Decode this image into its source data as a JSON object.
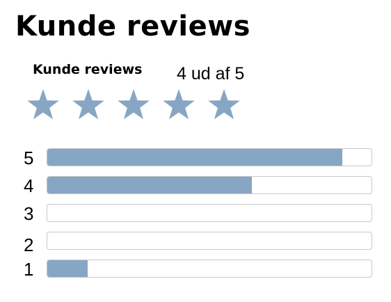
{
  "header": {
    "title": "Kunde reviews"
  },
  "rating": {
    "label": "Kunde reviews",
    "summary": "4 ud af 5",
    "value": 4,
    "max": 5,
    "star_color": "#87a6c3"
  },
  "distribution": [
    {
      "label": "5",
      "fraction": 0.91
    },
    {
      "label": "4",
      "fraction": 0.63
    },
    {
      "label": "3",
      "fraction": 0.0
    },
    {
      "label": "2",
      "fraction": 0.0
    },
    {
      "label": "1",
      "fraction": 0.125
    }
  ],
  "colors": {
    "bar_fill": "#87a6c3",
    "bar_border": "#c8c8c8"
  }
}
